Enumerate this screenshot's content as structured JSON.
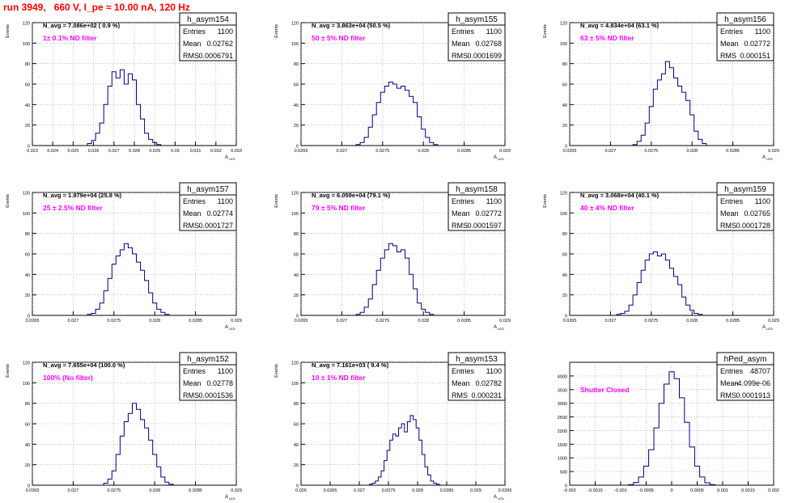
{
  "header": {
    "run_title": "run 3949,   660 V, I_pe ≈ 10.00 nA, 120 Hz"
  },
  "colors": {
    "title": "#ff0000",
    "hist_line": "#000080",
    "filter_text": "#ff00ff",
    "grid": "#9a9a9a"
  },
  "stats_labels": {
    "entries": "Entries",
    "mean": "Mean",
    "rms": "RMS"
  },
  "chart_data": [
    {
      "type": "histogram",
      "name": "h_asym154",
      "entries": "1100",
      "mean": "0.02762",
      "rms": "0.0006791",
      "navg": "N_avg = 7.086e+02 ( 0.9 %)",
      "filter": "1± 0.1% ND filter",
      "ylabel": "Events",
      "xlabel": "A",
      "xlabel_sub": "LED",
      "ylim": [
        0,
        120
      ],
      "yticks": [
        0,
        20,
        40,
        60,
        80,
        100,
        120
      ],
      "xlim": [
        0.023,
        0.033
      ],
      "xticks": [
        "0.023",
        "0.024",
        "0.025",
        "0.026",
        "0.027",
        "0.028",
        "0.029",
        "0.03",
        "0.031",
        "0.032",
        "0.033"
      ],
      "grid": true,
      "x": [
        0.0258,
        0.026,
        0.0262,
        0.0264,
        0.0266,
        0.0268,
        0.027,
        0.0272,
        0.0274,
        0.0276,
        0.0278,
        0.028,
        0.0282,
        0.0284,
        0.0286,
        0.0288,
        0.029,
        0.0292
      ],
      "values": [
        2,
        5,
        12,
        22,
        40,
        58,
        72,
        66,
        74,
        60,
        70,
        64,
        40,
        26,
        12,
        6,
        3,
        1
      ]
    },
    {
      "type": "histogram",
      "name": "h_asym155",
      "entries": "1100",
      "mean": "0.02768",
      "rms": "0.0001699",
      "navg": "N_avg = 3.863e+04 (50.5 %)",
      "filter": "50 ± 5% ND filter",
      "ylabel": "Events",
      "xlabel": "A",
      "xlabel_sub": "LED",
      "ylim": [
        0,
        120
      ],
      "yticks": [
        0,
        20,
        40,
        60,
        80,
        100,
        120
      ],
      "xlim": [
        0.0265,
        0.029
      ],
      "xticks": [
        "0.0265",
        "0.027",
        "0.0275",
        "0.028",
        "0.0285",
        "0.029"
      ],
      "grid": true,
      "x": [
        0.0272,
        0.02725,
        0.0273,
        0.02735,
        0.0274,
        0.02745,
        0.0275,
        0.02755,
        0.0276,
        0.02765,
        0.0277,
        0.02775,
        0.0278,
        0.02785,
        0.0279,
        0.02795,
        0.028,
        0.02805,
        0.0281,
        0.02815
      ],
      "values": [
        1,
        3,
        8,
        18,
        30,
        42,
        52,
        58,
        62,
        60,
        56,
        58,
        54,
        48,
        42,
        28,
        16,
        8,
        3,
        1
      ]
    },
    {
      "type": "histogram",
      "name": "h_asym156",
      "entries": "1100",
      "mean": "0.02772",
      "rms": "0.000151",
      "navg": "N_avg = 4.834e+04 (63.1 %)",
      "filter": "63 ± 5% ND filter",
      "ylabel": "Events",
      "xlabel": "A",
      "xlabel_sub": "LED",
      "ylim": [
        0,
        120
      ],
      "yticks": [
        0,
        20,
        40,
        60,
        80,
        100,
        120
      ],
      "xlim": [
        0.0265,
        0.029
      ],
      "xticks": [
        "0.0265",
        "0.027",
        "0.0275",
        "0.028",
        "0.0285",
        "0.029"
      ],
      "grid": true,
      "x": [
        0.0273,
        0.02735,
        0.0274,
        0.02745,
        0.0275,
        0.02755,
        0.0276,
        0.02765,
        0.0277,
        0.02775,
        0.0278,
        0.02785,
        0.0279,
        0.02795,
        0.028,
        0.02805,
        0.0281,
        0.02815
      ],
      "values": [
        1,
        4,
        10,
        22,
        38,
        55,
        64,
        70,
        82,
        76,
        66,
        58,
        52,
        44,
        30,
        14,
        6,
        2
      ]
    },
    {
      "type": "histogram",
      "name": "h_asym157",
      "entries": "1100",
      "mean": "0.02774",
      "rms": "0.0001727",
      "navg": "N_avg = 1.979e+04 (25.8 %)",
      "filter": "25 ± 2.5% ND filter",
      "ylabel": "Events",
      "xlabel": "A",
      "xlabel_sub": "LED",
      "ylim": [
        0,
        120
      ],
      "yticks": [
        0,
        20,
        40,
        60,
        80,
        100,
        120
      ],
      "xlim": [
        0.0265,
        0.029
      ],
      "xticks": [
        "0.0265",
        "0.027",
        "0.0275",
        "0.028",
        "0.0285",
        "0.029"
      ],
      "grid": true,
      "x": [
        0.0272,
        0.02725,
        0.0273,
        0.02735,
        0.0274,
        0.02745,
        0.0275,
        0.02755,
        0.0276,
        0.02765,
        0.0277,
        0.02775,
        0.0278,
        0.02785,
        0.0279,
        0.02795,
        0.028,
        0.02805,
        0.0281,
        0.02815
      ],
      "values": [
        1,
        2,
        6,
        12,
        24,
        36,
        50,
        58,
        64,
        70,
        66,
        60,
        52,
        44,
        34,
        22,
        12,
        6,
        3,
        1
      ]
    },
    {
      "type": "histogram",
      "name": "h_asym158",
      "entries": "1100",
      "mean": "0.02772",
      "rms": "0.0001597",
      "navg": "N_avg = 6.059e+04 (79.1 %)",
      "filter": "79 ± 5% ND filter",
      "ylabel": "Events",
      "xlabel": "A",
      "xlabel_sub": "LED",
      "ylim": [
        0,
        120
      ],
      "yticks": [
        0,
        20,
        40,
        60,
        80,
        100,
        120
      ],
      "xlim": [
        0.0265,
        0.029
      ],
      "xticks": [
        "0.0265",
        "0.027",
        "0.0275",
        "0.028",
        "0.0285",
        "0.029"
      ],
      "grid": true,
      "x": [
        0.0272,
        0.02725,
        0.0273,
        0.02735,
        0.0274,
        0.02745,
        0.0275,
        0.02755,
        0.0276,
        0.02765,
        0.0277,
        0.02775,
        0.0278,
        0.02785,
        0.0279,
        0.02795,
        0.028,
        0.02805,
        0.0281
      ],
      "values": [
        1,
        3,
        8,
        16,
        30,
        44,
        56,
        64,
        70,
        68,
        62,
        64,
        56,
        40,
        26,
        12,
        6,
        3,
        1
      ]
    },
    {
      "type": "histogram",
      "name": "h_asym159",
      "entries": "1100",
      "mean": "0.02765",
      "rms": "0.0001728",
      "navg": "N_avg = 3.068e+04 (40.1 %)",
      "filter": "40 ± 4% ND filter",
      "ylabel": "Events",
      "xlabel": "A",
      "xlabel_sub": "LED",
      "ylim": [
        0,
        120
      ],
      "yticks": [
        0,
        20,
        40,
        60,
        80,
        100,
        120
      ],
      "xlim": [
        0.0265,
        0.029
      ],
      "xticks": [
        "0.0265",
        "0.027",
        "0.0275",
        "0.028",
        "0.0285",
        "0.029"
      ],
      "grid": true,
      "x": [
        0.0271,
        0.02715,
        0.0272,
        0.02725,
        0.0273,
        0.02735,
        0.0274,
        0.02745,
        0.0275,
        0.02755,
        0.0276,
        0.02765,
        0.0277,
        0.02775,
        0.0278,
        0.02785,
        0.0279,
        0.02795,
        0.028,
        0.02805,
        0.0281
      ],
      "values": [
        1,
        2,
        4,
        10,
        20,
        32,
        44,
        54,
        60,
        62,
        58,
        60,
        54,
        46,
        38,
        30,
        18,
        10,
        5,
        2,
        1
      ]
    },
    {
      "type": "histogram",
      "name": "h_asym152",
      "entries": "1100",
      "mean": "0.02778",
      "rms": "0.0001536",
      "navg": "N_avg = 7.655e+04 (100.0 %)",
      "filter": "100% (No filter)",
      "ylabel": "Events",
      "xlabel": "A",
      "xlabel_sub": "LED",
      "ylim": [
        0,
        120
      ],
      "yticks": [
        0,
        20,
        40,
        60,
        80,
        100,
        120
      ],
      "xlim": [
        0.0265,
        0.029
      ],
      "xticks": [
        "0.0265",
        "0.027",
        "0.0275",
        "0.028",
        "0.0285",
        "0.029"
      ],
      "grid": true,
      "x": [
        0.0274,
        0.02745,
        0.0275,
        0.02755,
        0.0276,
        0.02765,
        0.0277,
        0.02775,
        0.0278,
        0.02785,
        0.0279,
        0.02795,
        0.028,
        0.02805,
        0.0281,
        0.02815,
        0.0282
      ],
      "values": [
        2,
        6,
        14,
        30,
        48,
        62,
        70,
        80,
        74,
        64,
        56,
        44,
        30,
        18,
        8,
        3,
        1
      ]
    },
    {
      "type": "histogram",
      "name": "h_asym153",
      "entries": "1100",
      "mean": "0.02782",
      "rms": "0.000231",
      "navg": "N_avg = 7.161e+03 ( 9.4 %)",
      "filter": "10 ± 1% ND filter",
      "ylabel": "Events",
      "xlabel": "A",
      "xlabel_sub": "LED",
      "ylim": [
        0,
        120
      ],
      "yticks": [
        0,
        20,
        40,
        60,
        80,
        100,
        120
      ],
      "xlim": [
        0.026,
        0.0295
      ],
      "xticks": [
        "0.026",
        "0.0265",
        "0.027",
        "0.0275",
        "0.028",
        "0.0285",
        "0.029",
        "0.0295"
      ],
      "grid": true,
      "x": [
        0.0272,
        0.02725,
        0.0273,
        0.02735,
        0.0274,
        0.02745,
        0.0275,
        0.02755,
        0.0276,
        0.02765,
        0.0277,
        0.02775,
        0.0278,
        0.02785,
        0.0279,
        0.02795,
        0.028,
        0.02805,
        0.0281,
        0.02815,
        0.0282,
        0.02825,
        0.0283,
        0.02835
      ],
      "values": [
        1,
        2,
        4,
        8,
        14,
        24,
        34,
        44,
        50,
        48,
        56,
        60,
        52,
        62,
        68,
        64,
        56,
        44,
        30,
        18,
        10,
        4,
        2,
        1
      ]
    },
    {
      "type": "histogram",
      "name": "hPed_asym",
      "entries": "48707",
      "mean": "-4.099e-06",
      "rms": "0.0001913",
      "navg": "",
      "filter": "Shutter Closed",
      "ylabel": "",
      "xlabel": "",
      "xlabel_sub": "",
      "ylim": [
        0,
        4500
      ],
      "yticks": [
        0,
        500,
        1000,
        1500,
        2000,
        2500,
        3000,
        3500,
        4000
      ],
      "xlim": [
        -0.002,
        0.002
      ],
      "xticks": [
        "-0.002",
        "-0.0015",
        "-0.001",
        "-0.0005",
        "0",
        "0.0005",
        "0.001",
        "0.0015",
        "0.002"
      ],
      "grid": true,
      "x": [
        -0.0008,
        -0.0007,
        -0.0006,
        -0.0005,
        -0.0004,
        -0.0003,
        -0.0002,
        -0.0001,
        0.0,
        0.0001,
        0.0002,
        0.0003,
        0.0004,
        0.0005,
        0.0006,
        0.0007,
        0.0008
      ],
      "values": [
        20,
        100,
        300,
        700,
        1300,
        2100,
        3000,
        3700,
        4150,
        3900,
        3200,
        2300,
        1400,
        700,
        300,
        90,
        20
      ]
    }
  ]
}
